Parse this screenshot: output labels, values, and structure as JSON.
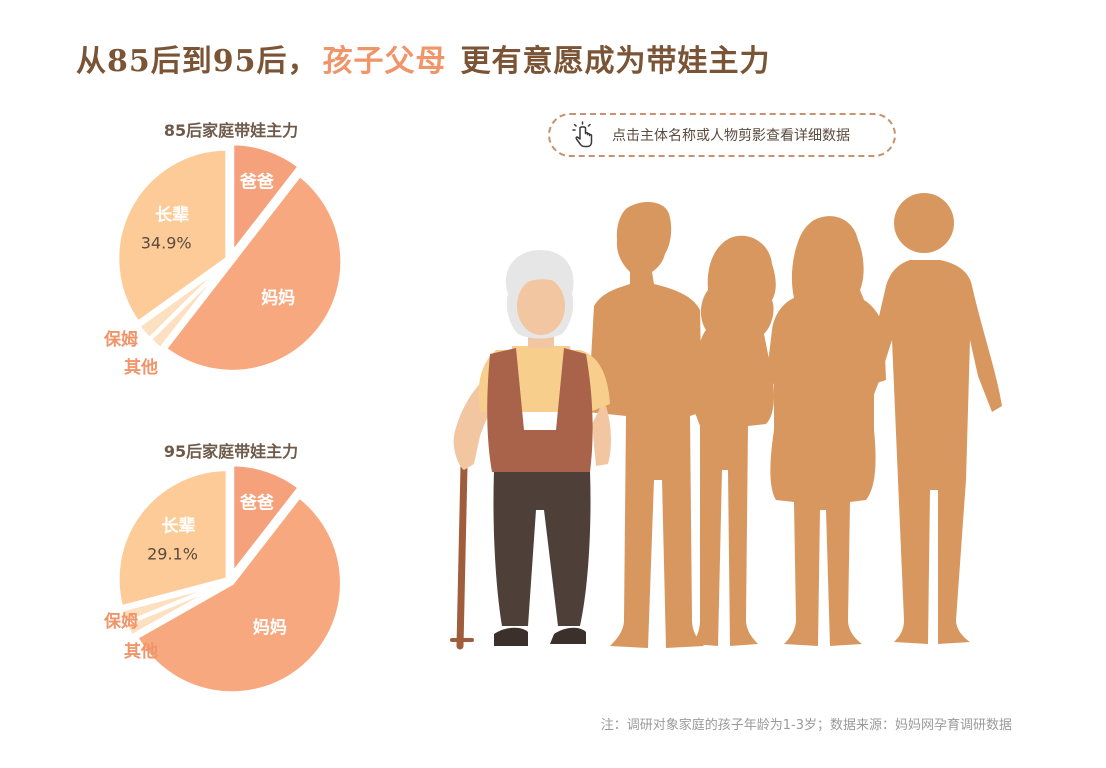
{
  "title": {
    "prefix": "从85后到95后，",
    "highlight": "孩子父母",
    "suffix": "更有意愿成为带娃主力"
  },
  "hint": {
    "text": "点击主体名称或人物剪影查看详细数据",
    "icon": "hand-pointer-icon"
  },
  "note": "注：调研对象家庭的孩子年龄为1-3岁；数据来源：妈妈网孕育调研数据",
  "colors": {
    "title": "#7a5434",
    "highlight": "#f0946a",
    "dad": "#f5a27c",
    "mom": "#f7a87e",
    "elder": "#fdcb98",
    "nanny": "#fde0c0",
    "other": "#fde0c0",
    "silhouette": "#d99760"
  },
  "chart_data": [
    {
      "type": "pie",
      "title": "85后家庭带娃主力",
      "slices": [
        {
          "label": "爸爸",
          "value": 10.5
        },
        {
          "label": "妈妈",
          "value": 50.0
        },
        {
          "label": "其他",
          "value": 2.1
        },
        {
          "label": "保姆",
          "value": 2.5
        },
        {
          "label": "长辈",
          "value": 34.9,
          "display": "34.9%"
        }
      ]
    },
    {
      "type": "pie",
      "title": "95后家庭带娃主力",
      "slices": [
        {
          "label": "爸爸",
          "value": 10.5
        },
        {
          "label": "妈妈",
          "value": 56.3
        },
        {
          "label": "其他",
          "value": 2.0
        },
        {
          "label": "保姆",
          "value": 2.1
        },
        {
          "label": "长辈",
          "value": 29.1,
          "display": "29.1%"
        }
      ]
    }
  ]
}
